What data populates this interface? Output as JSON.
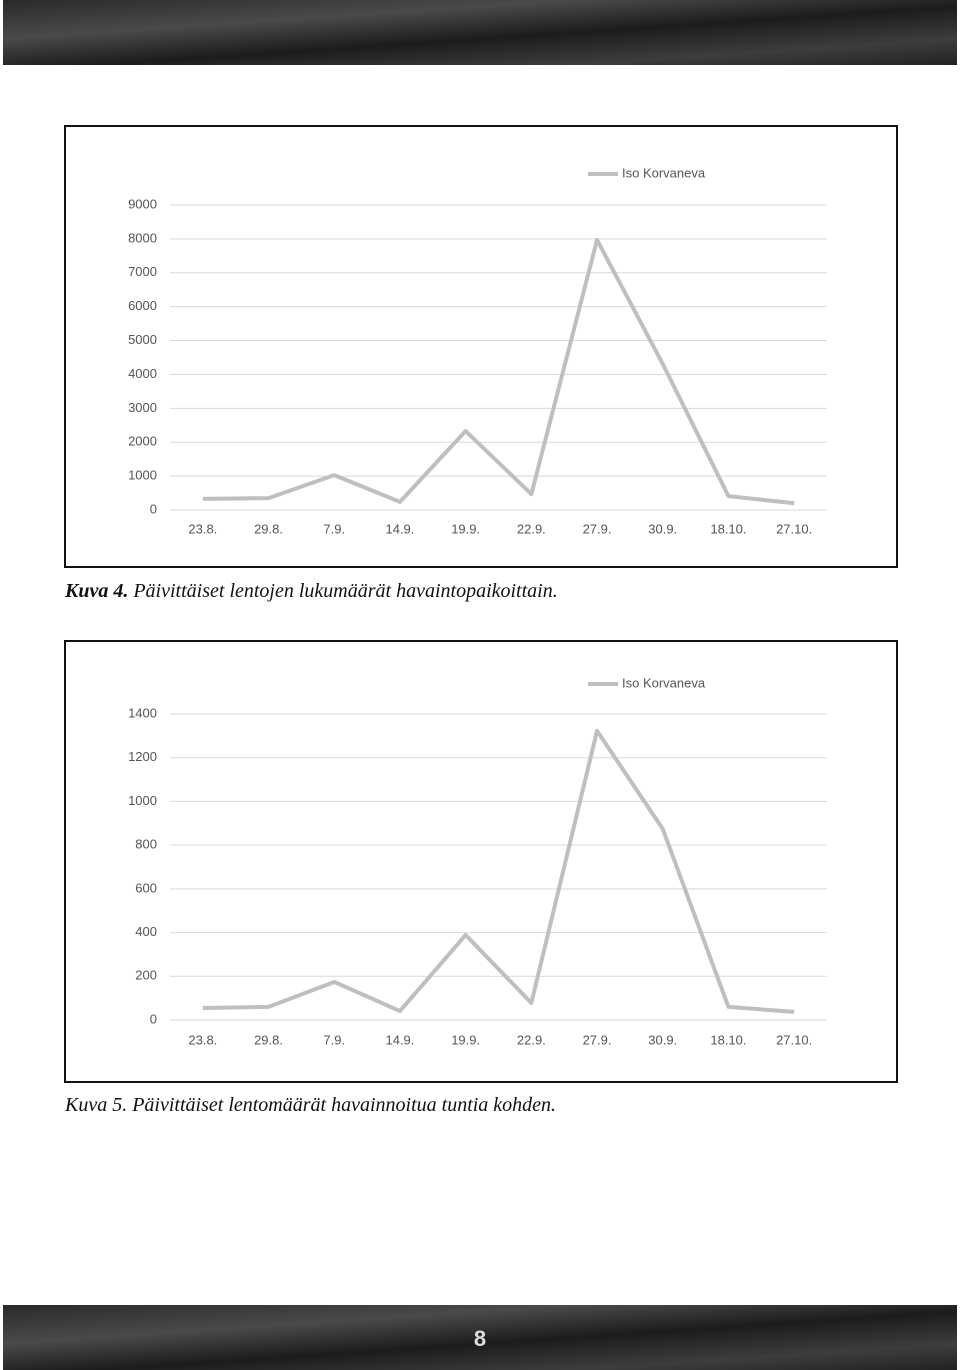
{
  "chart_data": [
    {
      "type": "line",
      "categories": [
        "23.8.",
        "29.8.",
        "7.9.",
        "14.9.",
        "19.9.",
        "22.9.",
        "27.9.",
        "30.9.",
        "18.10.",
        "27.10."
      ],
      "series": [
        {
          "name": "Iso Korvaneva",
          "color": "#bfbfbf",
          "values": [
            330,
            350,
            1030,
            240,
            2330,
            470,
            7970,
            4310,
            410,
            200
          ]
        }
      ],
      "ylim": [
        0,
        9000
      ],
      "yticks": [
        0,
        1000,
        2000,
        3000,
        4000,
        5000,
        6000,
        7000,
        8000,
        9000
      ],
      "grid": true,
      "legend": "top-right"
    },
    {
      "type": "line",
      "categories": [
        "23.8.",
        "29.8.",
        "7.9.",
        "14.9.",
        "19.9.",
        "22.9.",
        "27.9.",
        "30.9.",
        "18.10.",
        "27.10."
      ],
      "series": [
        {
          "name": "Iso Korvaneva",
          "color": "#bfbfbf",
          "values": [
            55,
            60,
            174,
            41,
            389,
            78,
            1323,
            874,
            60,
            37
          ]
        }
      ],
      "ylim": [
        0,
        1400
      ],
      "yticks": [
        0,
        200,
        400,
        600,
        800,
        1000,
        1200,
        1400
      ],
      "grid": true,
      "legend": "top-right"
    }
  ],
  "captions": [
    {
      "label": "Kuva 4.",
      "text": "Päivittäiset lentojen lukumäärät havaintopaikoittain."
    },
    {
      "label": "Kuva 5.",
      "text": "Päivittäiset lentomäärät havainnoitua tuntia kohden."
    }
  ],
  "page_number": "8"
}
